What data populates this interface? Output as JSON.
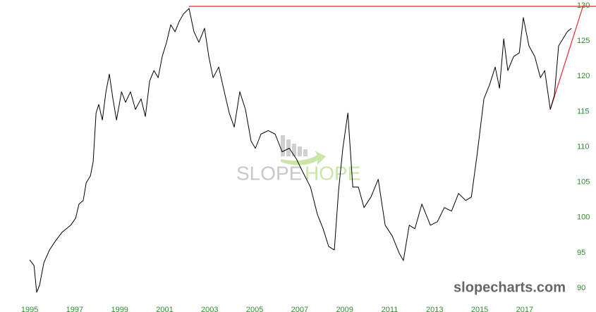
{
  "chart_data": {
    "type": "line",
    "watermark_left": "SLOPE",
    "watermark_right": "HOPE",
    "site": "slopecharts.com",
    "x": [
      1995.0,
      1995.19,
      1995.31,
      1995.44,
      1995.63,
      1995.88,
      1996.13,
      1996.44,
      1996.82,
      1997.04,
      1997.19,
      1997.38,
      1997.51,
      1997.7,
      1997.82,
      1997.95,
      1998.07,
      1998.23,
      1998.39,
      1998.54,
      1998.7,
      1998.86,
      1999.08,
      1999.26,
      1999.48,
      1999.7,
      1999.95,
      2000.14,
      2000.33,
      2000.52,
      2000.71,
      2000.89,
      2001.08,
      2001.27,
      2001.46,
      2001.65,
      2001.83,
      2002.08,
      2002.3,
      2002.52,
      2002.77,
      2002.96,
      2003.15,
      2003.4,
      2003.65,
      2003.87,
      2004.09,
      2004.34,
      2004.59,
      2004.84,
      2005.03,
      2005.28,
      2005.6,
      2005.91,
      2006.22,
      2006.54,
      2006.85,
      2007.16,
      2007.48,
      2007.79,
      2008.04,
      2008.29,
      2008.54,
      2008.73,
      2008.92,
      2009.14,
      2009.36,
      2009.61,
      2009.86,
      2010.17,
      2010.49,
      2010.8,
      2011.11,
      2011.43,
      2011.61,
      2011.87,
      2012.12,
      2012.43,
      2012.81,
      2013.12,
      2013.43,
      2013.75,
      2014.06,
      2014.38,
      2014.63,
      2014.88,
      2015.19,
      2015.44,
      2015.69,
      2015.88,
      2016.07,
      2016.25,
      2016.51,
      2016.76,
      2016.94,
      2017.19,
      2017.45,
      2017.7,
      2017.89,
      2018.14,
      2018.32,
      2018.51,
      2018.7,
      2018.89,
      2019.08
    ],
    "series": [
      {
        "color": "#000000",
        "values": [
          94.0,
          93.2,
          89.4,
          90.4,
          93.6,
          95.4,
          96.6,
          97.9,
          98.9,
          99.9,
          101.9,
          102.4,
          104.9,
          105.9,
          107.9,
          114.8,
          116.0,
          113.8,
          117.8,
          120.3,
          116.8,
          113.8,
          117.8,
          116.3,
          117.8,
          115.3,
          116.8,
          114.3,
          119.3,
          120.8,
          119.8,
          122.8,
          124.8,
          127.3,
          126.3,
          127.8,
          128.8,
          129.6,
          126.3,
          124.8,
          126.8,
          122.8,
          119.8,
          121.3,
          117.8,
          114.8,
          112.8,
          117.8,
          115.3,
          110.8,
          109.8,
          111.8,
          112.3,
          111.8,
          109.3,
          109.8,
          108.3,
          106.3,
          104.3,
          100.4,
          98.4,
          95.9,
          95.4,
          103.9,
          109.8,
          114.8,
          104.3,
          104.3,
          101.4,
          102.9,
          105.4,
          98.9,
          97.4,
          94.9,
          93.9,
          98.9,
          98.4,
          101.9,
          98.9,
          99.4,
          101.4,
          100.9,
          103.4,
          102.4,
          102.9,
          108.8,
          116.8,
          118.8,
          121.3,
          118.3,
          125.3,
          120.8,
          122.8,
          123.3,
          128.3,
          124.3,
          122.8,
          119.8,
          120.8,
          115.3,
          117.3,
          124.3,
          125.3,
          126.3,
          126.8
        ]
      }
    ],
    "lines": [
      {
        "color": "#e8262b",
        "x": [
          2002.08,
          2020.2
        ],
        "y": [
          129.9,
          129.9
        ]
      },
      {
        "color": "#e8262b",
        "x": [
          2018.14,
          2019.6
        ],
        "y": [
          115.3,
          130
        ]
      }
    ],
    "xlim": [
      1993.68,
      2020.17
    ],
    "ylim": [
      90,
      130
    ],
    "xticks": [
      1995,
      1997,
      1999,
      2001,
      2003,
      2005,
      2007,
      2009,
      2011,
      2013,
      2015,
      2017
    ],
    "yticks": [
      90,
      95,
      100,
      105,
      110,
      115,
      120,
      125,
      130
    ]
  }
}
